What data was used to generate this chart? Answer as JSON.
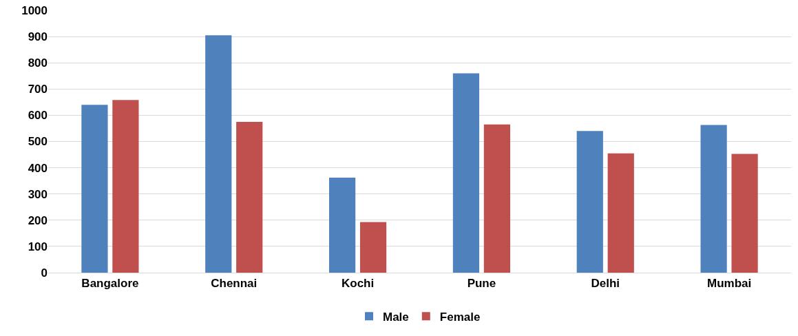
{
  "chart_data": {
    "type": "bar",
    "categories": [
      "Bangalore",
      "Chennai",
      "Kochi",
      "Pune",
      "Delhi",
      "Mumbai"
    ],
    "series": [
      {
        "name": "Male",
        "color": "#4f81bd",
        "values": [
          640,
          905,
          362,
          760,
          540,
          563
        ]
      },
      {
        "name": "Female",
        "color": "#c0504d",
        "values": [
          658,
          575,
          193,
          565,
          455,
          453
        ]
      }
    ],
    "ylim": [
      0,
      1000
    ],
    "yticks": [
      0,
      100,
      200,
      300,
      400,
      500,
      600,
      700,
      800,
      900,
      1000
    ],
    "grid": "y",
    "legend": "bottom"
  }
}
